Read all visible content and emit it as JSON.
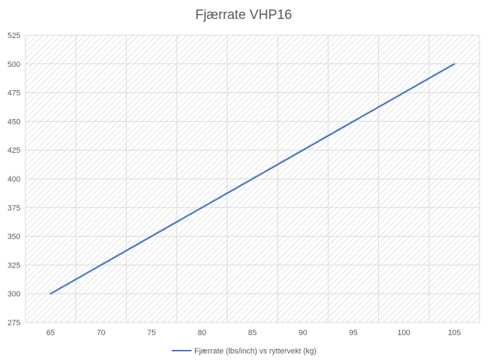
{
  "chart_data": {
    "type": "line",
    "title": "Fjærrate VHP16",
    "xlabel": "",
    "ylabel": "",
    "xlim": [
      62.5,
      107.5
    ],
    "ylim": [
      275,
      525
    ],
    "x_ticks": [
      65,
      70,
      75,
      80,
      85,
      90,
      95,
      100,
      105
    ],
    "y_ticks": [
      275,
      300,
      325,
      350,
      375,
      400,
      425,
      450,
      475,
      500,
      525
    ],
    "grid": true,
    "legend_position": "bottom",
    "series": [
      {
        "name": "Fjærrate (lbs/inch) vs ryttervekt (kg)",
        "color": "#4472C4",
        "x": [
          65,
          105
        ],
        "y": [
          300,
          500
        ]
      }
    ]
  },
  "colors": {
    "gridline": "#d9d9d9",
    "axis_text": "#595959",
    "title_text": "#595959",
    "hatch": "#e3e3e3"
  }
}
